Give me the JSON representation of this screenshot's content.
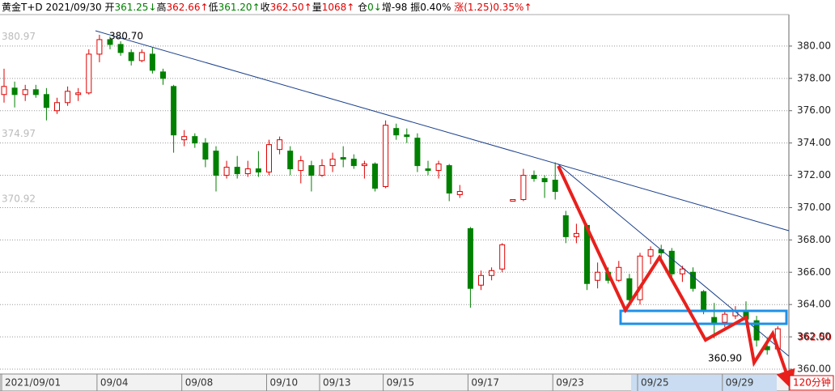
{
  "chart_data": {
    "type": "candlestick",
    "header": [
      {
        "text": "黄金T+D",
        "color": "#000"
      },
      {
        "text": " 2021/09/30 ",
        "color": "#000"
      },
      {
        "text": "开",
        "color": "#000"
      },
      {
        "text": "361.25↓",
        "color": "#008000"
      },
      {
        "text": "高",
        "color": "#000"
      },
      {
        "text": "362.66↑",
        "color": "#e00000"
      },
      {
        "text": "低",
        "color": "#000"
      },
      {
        "text": "361.20↑",
        "color": "#008000"
      },
      {
        "text": "收",
        "color": "#000"
      },
      {
        "text": "362.50↑",
        "color": "#e00000"
      },
      {
        "text": "量",
        "color": "#000"
      },
      {
        "text": "1068↑",
        "color": "#e00000"
      },
      {
        "text": " 仓",
        "color": "#000"
      },
      {
        "text": "0↓",
        "color": "#008000"
      },
      {
        "text": "增",
        "color": "#000"
      },
      {
        "text": "-98",
        "color": "#000"
      },
      {
        "text": " 振",
        "color": "#000"
      },
      {
        "text": "0.40%",
        "color": "#000"
      },
      {
        "text": " 涨",
        "color": "#e00000"
      },
      {
        "text": "(1.25)0.35%↑",
        "color": "#e00000"
      }
    ],
    "categories": [
      "2021/09/01",
      null,
      null,
      null,
      null,
      null,
      null,
      null,
      null,
      "09/04",
      null,
      null,
      null,
      null,
      null,
      null,
      null,
      "09/08",
      null,
      null,
      null,
      null,
      null,
      null,
      null,
      "09/10",
      null,
      null,
      null,
      null,
      "09/13",
      null,
      null,
      null,
      null,
      null,
      "09/15",
      null,
      null,
      null,
      null,
      null,
      null,
      null,
      "09/17",
      null,
      null,
      null,
      null,
      null,
      null,
      null,
      "09/23",
      null,
      null,
      null,
      null,
      null,
      null,
      null,
      "09/25",
      null,
      null,
      null,
      null,
      null,
      null,
      null,
      "09/29",
      null,
      null,
      null,
      null,
      null
    ],
    "candles": [
      [
        377.0,
        378.6,
        376.5,
        377.5
      ],
      [
        377.4,
        377.8,
        376.2,
        377.0
      ],
      [
        377.0,
        377.6,
        376.6,
        377.3
      ],
      [
        377.3,
        377.6,
        376.8,
        377.0
      ],
      [
        377.0,
        377.4,
        375.4,
        376.2
      ],
      [
        376.0,
        376.8,
        375.8,
        376.5
      ],
      [
        376.5,
        377.5,
        376.3,
        377.2
      ],
      [
        377.0,
        377.4,
        376.6,
        377.1
      ],
      [
        377.1,
        379.8,
        377.0,
        379.5
      ],
      [
        379.5,
        380.7,
        379.0,
        380.4
      ],
      [
        380.4,
        380.6,
        379.8,
        380.1
      ],
      [
        380.1,
        380.3,
        379.4,
        379.6
      ],
      [
        379.6,
        379.8,
        378.8,
        379.1
      ],
      [
        379.1,
        379.8,
        379.0,
        379.6
      ],
      [
        379.5,
        379.9,
        378.3,
        378.5
      ],
      [
        378.4,
        378.6,
        377.6,
        378.0
      ],
      [
        377.5,
        377.6,
        373.4,
        374.5
      ],
      [
        374.2,
        374.8,
        373.8,
        374.4
      ],
      [
        374.4,
        374.6,
        373.7,
        374.0
      ],
      [
        374.0,
        374.3,
        372.5,
        373.0
      ],
      [
        373.5,
        373.8,
        371.0,
        372.0
      ],
      [
        372.0,
        372.9,
        371.8,
        372.5
      ],
      [
        372.5,
        373.2,
        371.8,
        372.1
      ],
      [
        372.1,
        372.9,
        371.9,
        372.4
      ],
      [
        372.4,
        373.5,
        371.9,
        372.2
      ],
      [
        372.2,
        374.2,
        372.0,
        373.9
      ],
      [
        373.6,
        374.4,
        373.3,
        374.2
      ],
      [
        373.5,
        373.8,
        372.0,
        372.4
      ],
      [
        372.3,
        373.2,
        371.5,
        372.9
      ],
      [
        372.6,
        372.9,
        371.0,
        372.0
      ],
      [
        372.0,
        373.0,
        371.9,
        372.6
      ],
      [
        372.6,
        373.4,
        372.2,
        373.0
      ],
      [
        373.1,
        373.8,
        372.5,
        373.0
      ],
      [
        373.0,
        373.3,
        372.4,
        372.6
      ],
      [
        372.6,
        372.9,
        371.8,
        372.7
      ],
      [
        372.7,
        372.8,
        371.0,
        371.2
      ],
      [
        371.3,
        375.4,
        371.2,
        375.1
      ],
      [
        374.9,
        375.2,
        374.2,
        374.5
      ],
      [
        374.5,
        374.9,
        374.0,
        374.4
      ],
      [
        374.3,
        374.6,
        372.2,
        372.6
      ],
      [
        372.4,
        372.9,
        372.0,
        372.3
      ],
      [
        372.3,
        372.9,
        371.8,
        372.7
      ],
      [
        372.6,
        372.7,
        370.4,
        370.9
      ],
      [
        370.8,
        371.4,
        370.6,
        371.0
      ],
      [
        368.7,
        368.8,
        363.8,
        365.0
      ],
      [
        365.2,
        366.1,
        364.9,
        365.8
      ],
      [
        365.8,
        366.3,
        365.5,
        366.1
      ],
      [
        366.2,
        367.8,
        366.0,
        367.7
      ],
      [
        370.4,
        370.5,
        370.4,
        370.5
      ],
      [
        370.5,
        372.4,
        370.4,
        372.0
      ],
      [
        372.0,
        372.3,
        371.6,
        371.8
      ],
      [
        371.8,
        372.0,
        370.6,
        371.6
      ],
      [
        371.7,
        372.8,
        370.5,
        371.0
      ],
      [
        369.5,
        369.8,
        367.8,
        368.2
      ],
      [
        368.2,
        369.0,
        367.8,
        368.4
      ],
      [
        368.9,
        369.0,
        364.9,
        365.3
      ],
      [
        365.5,
        366.6,
        365.0,
        366.0
      ],
      [
        366.0,
        366.3,
        365.3,
        365.5
      ],
      [
        365.5,
        366.7,
        365.4,
        366.3
      ],
      [
        365.6,
        365.9,
        364.0,
        364.3
      ],
      [
        364.3,
        367.2,
        364.0,
        367.0
      ],
      [
        367.0,
        367.6,
        366.5,
        367.4
      ],
      [
        367.4,
        367.7,
        366.8,
        367.2
      ],
      [
        367.3,
        367.5,
        365.5,
        365.9
      ],
      [
        365.9,
        366.4,
        365.4,
        366.2
      ],
      [
        366.0,
        366.3,
        364.8,
        365.0
      ],
      [
        364.8,
        364.9,
        363.4,
        363.7
      ],
      [
        363.2,
        364.1,
        361.9,
        362.8
      ],
      [
        362.9,
        363.6,
        362.6,
        363.4
      ],
      [
        363.3,
        363.9,
        363.1,
        363.6
      ],
      [
        363.6,
        364.2,
        362.9,
        363.1
      ],
      [
        363.0,
        363.3,
        361.4,
        361.8
      ],
      [
        361.4,
        361.9,
        360.9,
        361.2
      ],
      [
        361.25,
        362.66,
        361.2,
        362.5
      ]
    ],
    "up_color": "#e00000",
    "down_color": "#008000",
    "ylim": [
      359.7,
      381.95
    ],
    "yticks": [
      {
        "value": 360,
        "label": "360.00"
      },
      {
        "value": 362,
        "label": "362.00"
      },
      {
        "value": 364,
        "label": "364.00"
      },
      {
        "value": 366,
        "label": "366.00"
      },
      {
        "value": 368,
        "label": "368.00"
      },
      {
        "value": 370,
        "label": "370.00"
      },
      {
        "value": 372,
        "label": "372.00"
      },
      {
        "value": 374,
        "label": "374.00"
      },
      {
        "value": 376,
        "label": "376.00"
      },
      {
        "value": 378,
        "label": "378.00"
      },
      {
        "value": 380,
        "label": "380.00"
      }
    ],
    "left_ticks": [
      380.97,
      374.97,
      370.92
    ],
    "grid": true,
    "annotations": {
      "high": "380.70",
      "low": "360.90",
      "last": "362.50",
      "period": "120分钟"
    }
  }
}
